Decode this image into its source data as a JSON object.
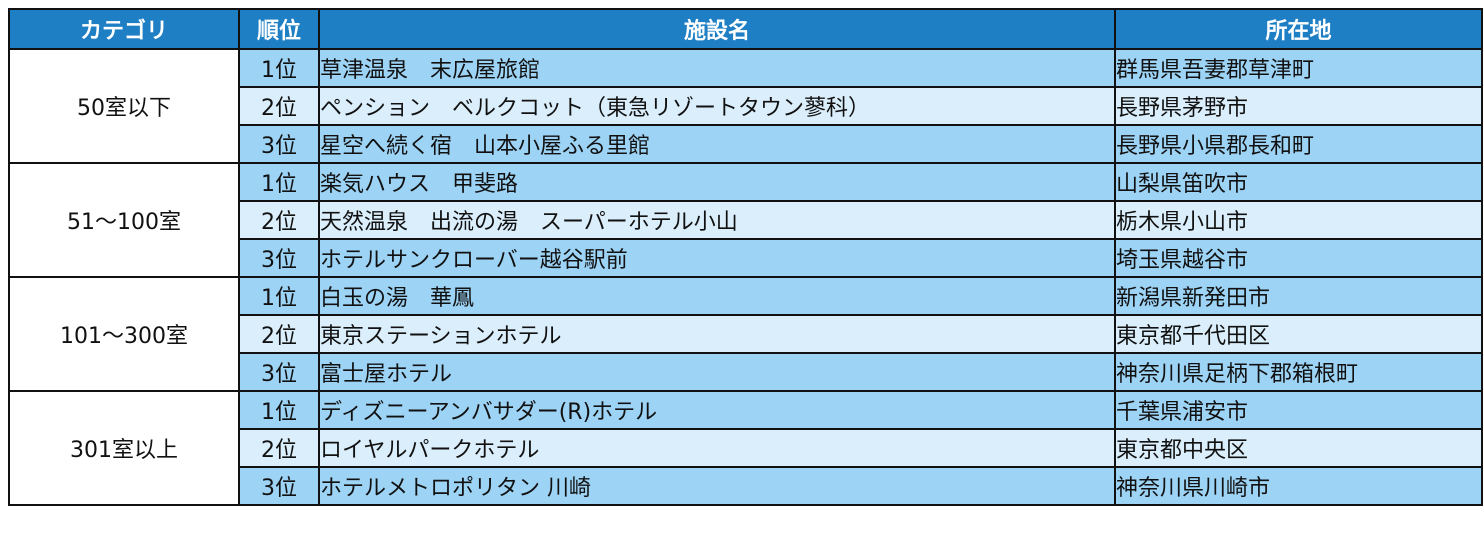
{
  "header": {
    "category": "カテゴリ",
    "rank": "順位",
    "facility": "施設名",
    "location": "所在地"
  },
  "groups": [
    {
      "category": "50室以下",
      "rows": [
        {
          "rank": "1位",
          "facility": "草津温泉　末広屋旅館",
          "location": "群馬県吾妻郡草津町"
        },
        {
          "rank": "2位",
          "facility": "ペンション　ベルクコット（東急リゾートタウン蓼科）",
          "location": "長野県茅野市"
        },
        {
          "rank": "3位",
          "facility": "星空へ続く宿　山本小屋ふる里館",
          "location": "長野県小県郡長和町"
        }
      ]
    },
    {
      "category": "51～100室",
      "rows": [
        {
          "rank": "1位",
          "facility": "楽気ハウス　甲斐路",
          "location": "山梨県笛吹市"
        },
        {
          "rank": "2位",
          "facility": "天然温泉　出流の湯　スーパーホテル小山",
          "location": "栃木県小山市"
        },
        {
          "rank": "3位",
          "facility": "ホテルサンクローバー越谷駅前",
          "location": "埼玉県越谷市"
        }
      ]
    },
    {
      "category": "101～300室",
      "rows": [
        {
          "rank": "1位",
          "facility": "白玉の湯　華鳳",
          "location": "新潟県新発田市"
        },
        {
          "rank": "2位",
          "facility": "東京ステーションホテル",
          "location": "東京都千代田区"
        },
        {
          "rank": "3位",
          "facility": "富士屋ホテル",
          "location": "神奈川県足柄下郡箱根町"
        }
      ]
    },
    {
      "category": "301室以上",
      "rows": [
        {
          "rank": "1位",
          "facility": "ディズニーアンバサダー(R)ホテル",
          "location": "千葉県浦安市"
        },
        {
          "rank": "2位",
          "facility": "ロイヤルパークホテル",
          "location": "東京都中央区"
        },
        {
          "rank": "3位",
          "facility": "ホテルメトロポリタン 川崎",
          "location": "神奈川県川崎市"
        }
      ]
    }
  ],
  "colors": {
    "header_bg": "#1f7fc4",
    "row_odd_bg": "#9dd3f5",
    "row_even_bg": "#dbeefb"
  }
}
